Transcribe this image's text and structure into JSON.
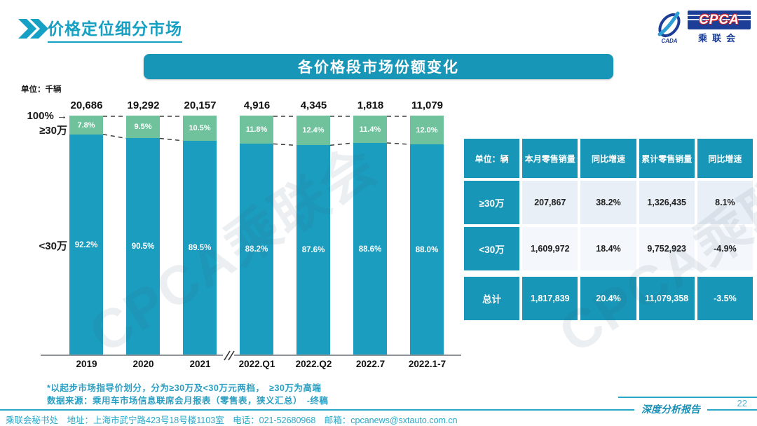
{
  "slide": {
    "header": {
      "title": "价格定位细分市场"
    },
    "logo": {
      "cpca": "CPCA",
      "cn": "乘联会",
      "sub": "CADA"
    },
    "banner": {
      "title": "各价格段市场份额变化"
    },
    "chart_labels": {
      "unit": "单位：千辆",
      "pct100": "100% →",
      "upper": "≥30万",
      "lower": "<30万"
    },
    "footnotes": {
      "line1": "*以起步市场指导价划分，分为≥30万及<30万元两档，　≥30万为高端",
      "line2": "数据来源：乘用车市场信息联席会月报表（零售表，狭义汇总）　-终稿"
    },
    "footer": {
      "left": "乘联会秘书处　地址：上海市武宁路423号18号楼1103室　电话：021-52680968　邮箱：cpcanews@sxtauto.com.cn",
      "report": "深度分析报告",
      "page": "22"
    },
    "watermark": "CPCA乘联会"
  },
  "chart_data": {
    "type": "bar",
    "subtype": "stacked-100-percent",
    "title": "各价格段市场份额变化",
    "unit": "单位：千辆",
    "categories": [
      "2019",
      "2020",
      "2021",
      "2022.Q1",
      "2022.Q2",
      "2022.7",
      "2022.1-7"
    ],
    "totals": [
      "20,686",
      "19,292",
      "20,157",
      "4,916",
      "4,345",
      "1,818",
      "11,079"
    ],
    "series": [
      {
        "name": "≥30万",
        "color": "#6fc29b",
        "values": [
          7.8,
          9.5,
          10.5,
          11.8,
          12.4,
          11.4,
          12.0
        ]
      },
      {
        "name": "<30万",
        "color": "#1a9dbf",
        "values": [
          92.2,
          90.5,
          89.5,
          88.2,
          87.6,
          88.6,
          88.0
        ]
      }
    ],
    "ylim": [
      0,
      100
    ],
    "grid": false,
    "legend_position": "left-axis-labels",
    "axis_break_after_index": 2
  },
  "table": {
    "headers": [
      "单位：辆",
      "本月零售销量",
      "同比增速",
      "累计零售销量",
      "同比增速"
    ],
    "rows": [
      {
        "label": "≥30万",
        "cells": [
          "207,867",
          "38.2%",
          "1,326,435",
          "8.1%"
        ],
        "total": false
      },
      {
        "label": "<30万",
        "cells": [
          "1,609,972",
          "18.4%",
          "9,752,923",
          "-4.9%"
        ],
        "total": false
      },
      {
        "label": "总计",
        "cells": [
          "1,817,839",
          "20.4%",
          "11,079,358",
          "-3.5%"
        ],
        "total": true
      }
    ]
  },
  "colors": {
    "accent_teal": "#1796b7",
    "bar_blue": "#1a9dbf",
    "bar_green": "#6fc29b",
    "title_teal": "#16a0c3",
    "footnote_teal": "#2b9ec2",
    "footer_teal": "#2aa6c7",
    "logo_blue": "#1d3e96",
    "logo_red": "#cf2027",
    "table_row_a": "#e9eff6",
    "table_row_b": "#f4f7fb"
  }
}
